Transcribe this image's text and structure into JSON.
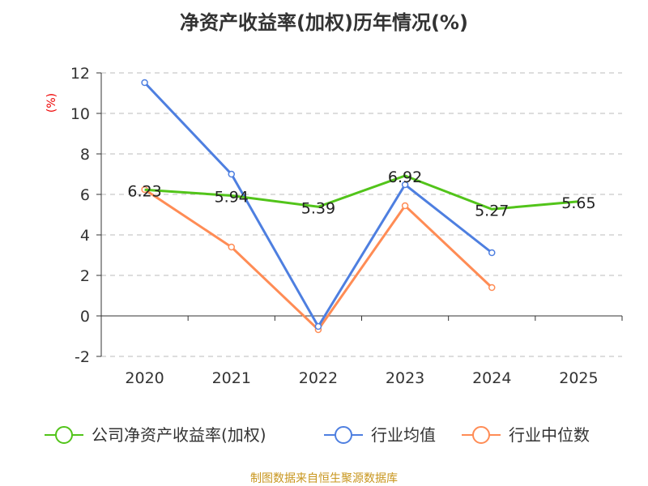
{
  "chart_data": {
    "type": "line",
    "title": "净资产收益率(加权)历年情况(%)",
    "ylabel": "(%)",
    "xlabel": "",
    "categories": [
      "2020",
      "2021",
      "2022",
      "2023",
      "2024",
      "2025"
    ],
    "ylim": [
      -2,
      12
    ],
    "yticks": [
      -2,
      0,
      2,
      4,
      6,
      8,
      10,
      12
    ],
    "grid": true,
    "legend_position": "bottom",
    "series": [
      {
        "name": "公司净资产收益率(加权)",
        "color": "#52c41a",
        "values": [
          6.23,
          5.94,
          5.39,
          6.92,
          5.27,
          5.65
        ],
        "labels": [
          "6.23",
          "5.94",
          "5.39",
          "6.92",
          "5.27",
          "5.65"
        ],
        "markers": false
      },
      {
        "name": "行业均值",
        "color": "#4e7fe0",
        "values": [
          11.52,
          7.0,
          -0.52,
          6.48,
          3.12,
          null
        ],
        "markers": true
      },
      {
        "name": "行业中位数",
        "color": "#ff8c55",
        "values": [
          6.24,
          3.4,
          -0.68,
          5.44,
          1.4,
          null
        ],
        "markers": true
      }
    ]
  },
  "source": "制图数据来自恒生聚源数据库"
}
